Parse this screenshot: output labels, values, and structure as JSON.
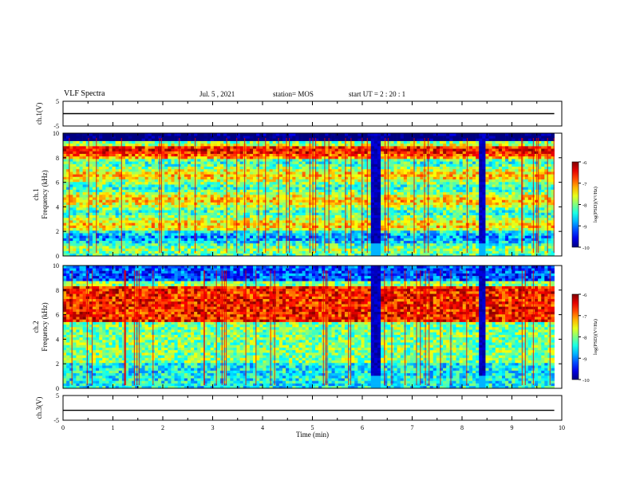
{
  "header": {
    "title": "VLF Spectra",
    "date": "Jul. 5 , 2021",
    "station": "station= MOS",
    "start": "start UT = 2 : 20 : 1"
  },
  "chart_data": [
    {
      "type": "line",
      "panel": "ch1-voltage",
      "ylabel": "ch.1(V)",
      "ylim": [
        -5,
        5
      ],
      "y_ticks": [
        "5",
        "-5"
      ],
      "xlim": [
        0,
        10
      ],
      "series": [
        {
          "x": [
            0,
            9.85
          ],
          "y": [
            0,
            0
          ]
        }
      ]
    },
    {
      "type": "heatmap",
      "panel": "ch1-spectrogram",
      "ylabel_top": "ch.1",
      "ylabel": "Frequency (kHz)",
      "ylim": [
        0,
        10
      ],
      "y_ticks": [
        "0",
        "2",
        "4",
        "6",
        "8",
        "10"
      ],
      "xlim": [
        0,
        10
      ],
      "data_end_min": 9.85,
      "dark_gaps_min": [
        [
          6.2,
          6.35
        ],
        [
          8.35,
          8.5
        ]
      ],
      "colorbar": {
        "label": "log(PSD)(V²/Hz)",
        "ticks": [
          "-6",
          "-7",
          "-8",
          "-9",
          "-10"
        ],
        "range": [
          -10,
          -6
        ]
      }
    },
    {
      "type": "heatmap",
      "panel": "ch2-spectrogram",
      "ylabel_top": "ch.2",
      "ylabel": "Frequency (kHz)",
      "ylim": [
        0,
        10
      ],
      "y_ticks": [
        "0",
        "2",
        "4",
        "6",
        "8",
        "10"
      ],
      "xlim": [
        0,
        10
      ],
      "data_end_min": 9.85,
      "dark_gaps_min": [
        [
          6.2,
          6.35
        ],
        [
          8.35,
          8.5
        ]
      ],
      "colorbar": {
        "label": "log(PSD)(V²/Hz)",
        "ticks": [
          "-6",
          "-7",
          "-8",
          "-9",
          "-10"
        ],
        "range": [
          -10,
          -6
        ]
      }
    },
    {
      "type": "line",
      "panel": "ch3-voltage",
      "ylabel": "ch.3(V)",
      "ylim": [
        -5,
        5
      ],
      "y_ticks": [
        "5",
        "-5"
      ],
      "xlim": [
        0,
        10
      ],
      "series": [
        {
          "x": [
            0,
            9.85
          ],
          "y": [
            -1,
            -1
          ]
        }
      ]
    }
  ],
  "xaxis": {
    "label": "Time (min)",
    "ticks": [
      "0",
      "1",
      "2",
      "3",
      "4",
      "5",
      "6",
      "7",
      "8",
      "9",
      "10"
    ]
  }
}
